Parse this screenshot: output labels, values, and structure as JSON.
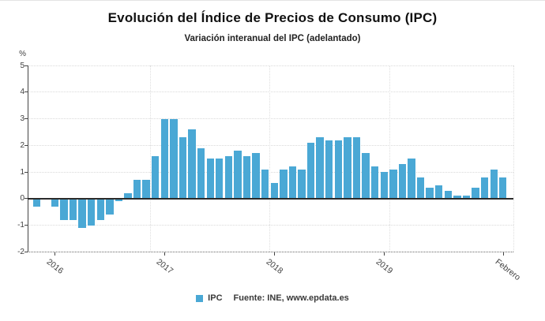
{
  "header": {
    "title": "Evolución del Índice de Precios de Consumo (IPC)",
    "subtitle": "Variación interanual del IPC (adelantado)"
  },
  "y_axis": {
    "unit": "%",
    "tick_values": [
      5,
      4,
      3,
      2,
      1,
      0,
      -1,
      -2
    ]
  },
  "legend": {
    "series_label": "IPC",
    "source": "Fuente: INE, www.epdata.es"
  },
  "colors": {
    "bar": "#4aa8d5",
    "zero_line": "#2b2b2b",
    "grid_light": "#d9d9d9",
    "grid_dark": "#666666",
    "axis": "#444444",
    "text": "#3f3f3f"
  },
  "chart_data": {
    "type": "bar",
    "title": "Evolución del Índice de Precios de Consumo (IPC)",
    "subtitle": "Variación interanual del IPC (adelantado)",
    "series_name": "IPC",
    "ylabel": "%",
    "ylim": [
      -2,
      5
    ],
    "grid": true,
    "legend_position": "bottom",
    "source_note": "Fuente: INE, www.epdata.es",
    "x": [
      "2015-11",
      "2015-12",
      "2016-01",
      "2016-02",
      "2016-03",
      "2016-04",
      "2016-05",
      "2016-06",
      "2016-07",
      "2016-08",
      "2016-09",
      "2016-10",
      "2016-11",
      "2016-12",
      "2017-01",
      "2017-02",
      "2017-03",
      "2017-04",
      "2017-05",
      "2017-06",
      "2017-07",
      "2017-08",
      "2017-09",
      "2017-10",
      "2017-11",
      "2017-12",
      "2018-01",
      "2018-02",
      "2018-03",
      "2018-04",
      "2018-05",
      "2018-06",
      "2018-07",
      "2018-08",
      "2018-09",
      "2018-10",
      "2018-11",
      "2018-12",
      "2019-01",
      "2019-02",
      "2019-03",
      "2019-04",
      "2019-05",
      "2019-06",
      "2019-07",
      "2019-08",
      "2019-09",
      "2019-10",
      "2019-11",
      "2019-12",
      "2020-01",
      "2020-02"
    ],
    "values": [
      -0.3,
      0.0,
      -0.3,
      -0.8,
      -0.8,
      -1.1,
      -1.0,
      -0.8,
      -0.6,
      -0.1,
      0.2,
      0.7,
      0.7,
      1.6,
      3.0,
      3.0,
      2.3,
      2.6,
      1.9,
      1.5,
      1.5,
      1.6,
      1.8,
      1.6,
      1.7,
      1.1,
      0.6,
      1.1,
      1.2,
      1.1,
      2.1,
      2.3,
      2.2,
      2.2,
      2.3,
      2.3,
      1.7,
      1.2,
      1.0,
      1.1,
      1.3,
      1.5,
      0.8,
      0.4,
      0.5,
      0.3,
      0.1,
      0.1,
      0.4,
      0.8,
      1.1,
      0.8
    ],
    "x_tick_labels": [
      "2016",
      "2017",
      "2018",
      "2019",
      "Febrero"
    ],
    "x_tick_indices": [
      2,
      14,
      26,
      38,
      51
    ]
  }
}
